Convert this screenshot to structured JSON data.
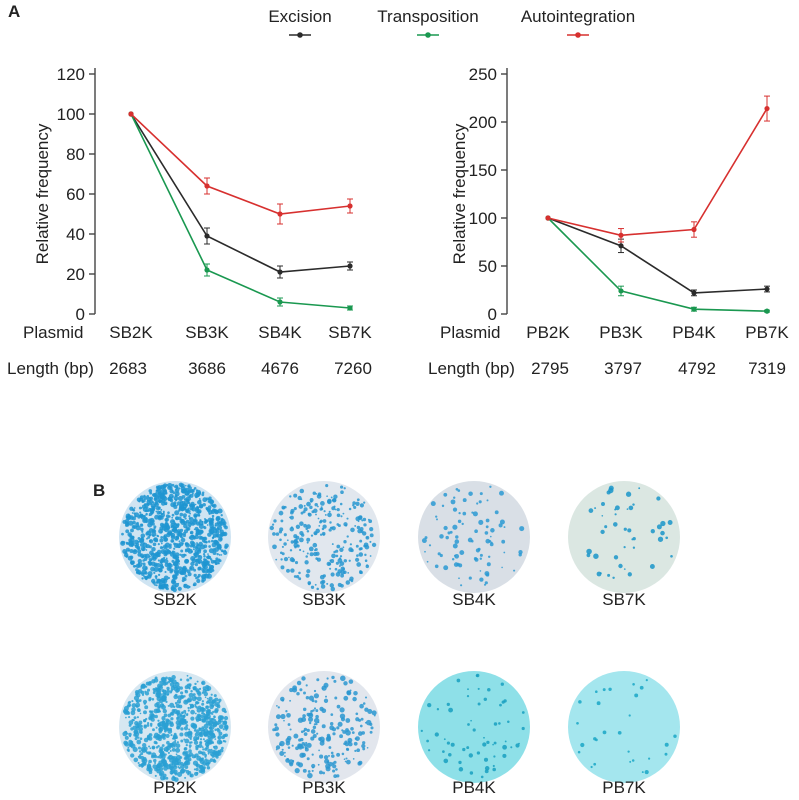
{
  "panel_labels": {
    "a": "A",
    "b": "B"
  },
  "legend": [
    {
      "label": "Excision",
      "color": "#2b2b2b"
    },
    {
      "label": "Transposition",
      "color": "#1a9850"
    },
    {
      "label": "Autointegration",
      "color": "#d7302f"
    }
  ],
  "row_labels": {
    "plasmid": "Plasmid",
    "length": "Length (bp)"
  },
  "chart_data": [
    {
      "type": "line",
      "ylabel": "Relative frequency",
      "ylim": [
        0,
        120
      ],
      "yticks": [
        0,
        20,
        40,
        60,
        80,
        100,
        120
      ],
      "categories": [
        "SB2K",
        "SB3K",
        "SB4K",
        "SB7K"
      ],
      "lengths": [
        "2683",
        "3686",
        "4676",
        "7260"
      ],
      "series": [
        {
          "name": "Excision",
          "color": "#2b2b2b",
          "values": [
            100,
            39,
            21,
            24
          ],
          "errors": [
            0,
            4,
            3,
            2
          ]
        },
        {
          "name": "Transposition",
          "color": "#1a9850",
          "values": [
            100,
            22,
            6,
            3
          ],
          "errors": [
            0,
            3,
            2,
            1
          ]
        },
        {
          "name": "Autointegration",
          "color": "#d7302f",
          "values": [
            100,
            64,
            50,
            54
          ],
          "errors": [
            0,
            4,
            5,
            3.5
          ]
        }
      ]
    },
    {
      "type": "line",
      "ylabel": "Relative frequency",
      "ylim": [
        0,
        250
      ],
      "yticks": [
        0,
        50,
        100,
        150,
        200,
        250
      ],
      "categories": [
        "PB2K",
        "PB3K",
        "PB4K",
        "PB7K"
      ],
      "lengths": [
        "2795",
        "3797",
        "4792",
        "7319"
      ],
      "series": [
        {
          "name": "Excision",
          "color": "#2b2b2b",
          "values": [
            100,
            71,
            22,
            26
          ],
          "errors": [
            0,
            7,
            3,
            3
          ]
        },
        {
          "name": "Transposition",
          "color": "#1a9850",
          "values": [
            100,
            24,
            5,
            3
          ],
          "errors": [
            0,
            5,
            2,
            1
          ]
        },
        {
          "name": "Autointegration",
          "color": "#d7302f",
          "values": [
            100,
            82,
            88,
            214
          ],
          "errors": [
            0,
            7,
            8,
            13
          ]
        }
      ]
    }
  ],
  "plates": [
    {
      "label": "SB2K",
      "bg": "#cfe4f2",
      "dot": "#1f95d1",
      "density": 950,
      "size": [
        0.8,
        2.6
      ]
    },
    {
      "label": "SB3K",
      "bg": "#e1e7ee",
      "dot": "#2797d0",
      "density": 260,
      "size": [
        0.8,
        2.4
      ]
    },
    {
      "label": "SB4K",
      "bg": "#d9dfe6",
      "dot": "#2a9ad2",
      "density": 90,
      "size": [
        0.8,
        2.6
      ]
    },
    {
      "label": "SB7K",
      "bg": "#dbe7e2",
      "dot": "#1a95c9",
      "density": 45,
      "size": [
        0.8,
        2.8
      ]
    },
    {
      "label": "PB2K",
      "bg": "#d6e7f1",
      "dot": "#2aa0d4",
      "density": 800,
      "size": [
        0.8,
        2.6
      ]
    },
    {
      "label": "PB3K",
      "bg": "#e2e6ed",
      "dot": "#2a97d0",
      "density": 220,
      "size": [
        0.8,
        2.8
      ]
    },
    {
      "label": "PB4K",
      "bg": "#8ee0e8",
      "dot": "#179fbf",
      "density": 60,
      "size": [
        0.8,
        2.4
      ]
    },
    {
      "label": "PB7K",
      "bg": "#a4e6ee",
      "dot": "#1aa6c6",
      "density": 28,
      "size": [
        0.8,
        2.2
      ]
    }
  ]
}
